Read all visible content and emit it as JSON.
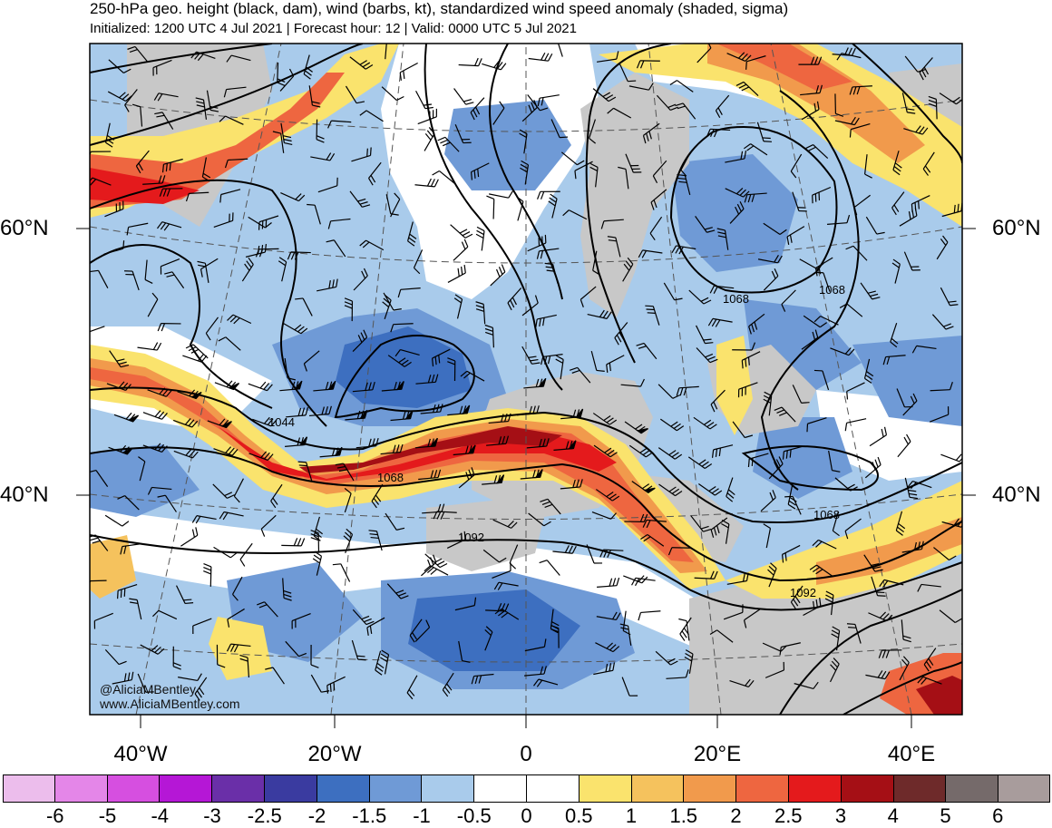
{
  "title": "250-hPa geo. height (black, dam), wind (barbs, kt), standardized wind speed anomaly (shaded, sigma)",
  "subtitle": "Initialized: 1200 UTC 4 Jul 2021 | Forecast hour: 12 | Valid: 0000 UTC 5 Jul 2021",
  "lat_labels": {
    "n60_left": "60°N",
    "n60_right": "60°N",
    "n40_left": "40°N",
    "n40_right": "40°N"
  },
  "lon_labels": {
    "w40": "40°W",
    "w20": "20°W",
    "zero": "0",
    "e20": "20°E",
    "e40": "40°E"
  },
  "contour_labels": {
    "c1044": "1044",
    "c1068_a": "1068",
    "c1068_b": "1068",
    "c1068_c": "1068",
    "c1068_d": "1068",
    "c1092_a": "1092",
    "c1092_b": "1092"
  },
  "credit": {
    "handle": "@AliciaMBentley",
    "site": "www.AliciaMBentley.com"
  },
  "colorbar": {
    "colors": [
      "#ecbdec",
      "#e486e8",
      "#d64fe0",
      "#b517d6",
      "#6a2fa8",
      "#3a3ba0",
      "#3d6fc0",
      "#6f9ad6",
      "#a9cbeb",
      "#ffffff",
      "#ffffff",
      "#fae36d",
      "#f5c25d",
      "#f19a4c",
      "#ee6640",
      "#e41a1c",
      "#a50f15",
      "#6e2a2a",
      "#756a6a",
      "#a89c9c"
    ],
    "ticks": [
      "-6",
      "-5",
      "-4",
      "-3",
      "-2.5",
      "-2",
      "-1.5",
      "-1",
      "-0.5",
      "0",
      "0.5",
      "1",
      "1.5",
      "2",
      "2.5",
      "3",
      "4",
      "5",
      "6"
    ]
  }
}
